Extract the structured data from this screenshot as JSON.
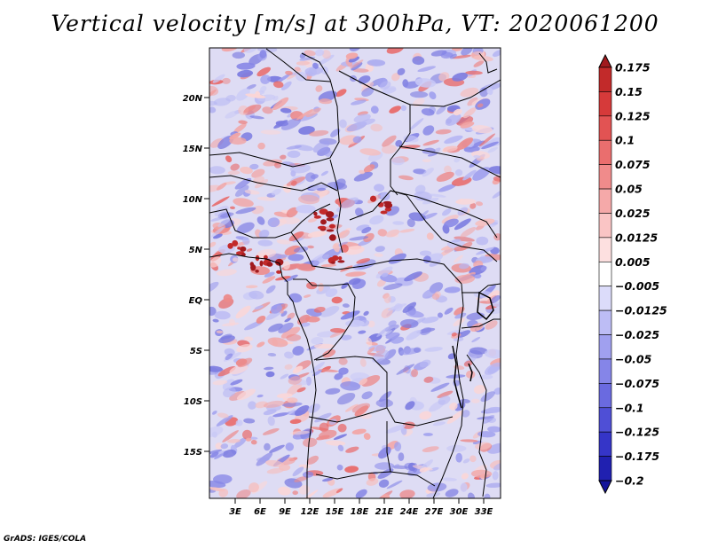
{
  "title": "Vertical velocity [m/s] at 300hPa, VT: 2020061200",
  "footer": "GrADS: IGES/COLA",
  "map": {
    "lat_labels": [
      "20N",
      "15N",
      "10N",
      "5N",
      "EQ",
      "5S",
      "10S",
      "15S"
    ],
    "lon_labels": [
      "3E",
      "6E",
      "9E",
      "12E",
      "15E",
      "18E",
      "21E",
      "24E",
      "27E",
      "30E",
      "33E"
    ]
  },
  "colorbar": {
    "labels": [
      "0.175",
      "0.15",
      "0.125",
      "0.1",
      "0.075",
      "0.05",
      "0.025",
      "0.0125",
      "0.005",
      "-0.005",
      "-0.0125",
      "-0.025",
      "-0.05",
      "-0.075",
      "-0.1",
      "-0.125",
      "-0.175",
      "-0.2"
    ],
    "colors": [
      "#a11a1e",
      "#c22a2a",
      "#d63a3a",
      "#e25353",
      "#ea6e6e",
      "#f08b8b",
      "#f5a9a9",
      "#fac5c5",
      "#fde0e0",
      "#ffffff",
      "#dcdcfa",
      "#bdbdf5",
      "#a0a0ef",
      "#8585e8",
      "#6a6ae0",
      "#4f4fd6",
      "#3535c8",
      "#2020b0",
      "#15159a"
    ]
  }
}
